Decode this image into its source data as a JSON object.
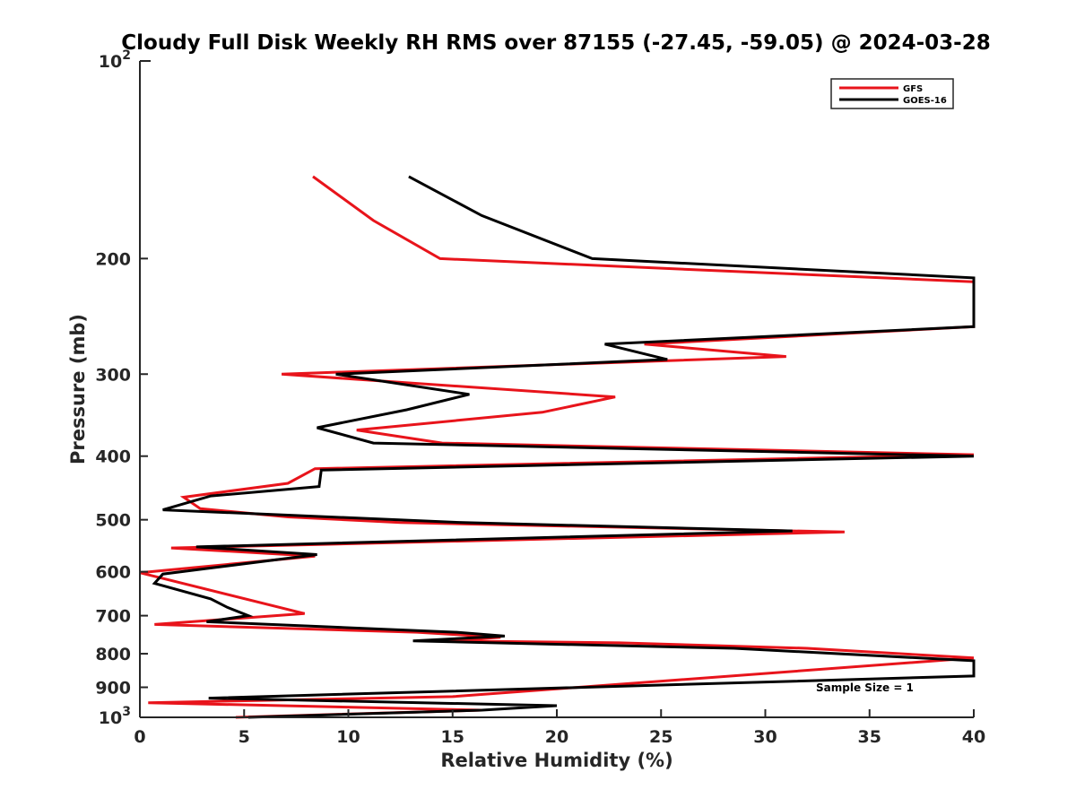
{
  "chart_data": {
    "type": "line",
    "title": "Cloudy Full Disk Weekly RH RMS over 87155 (-27.45, -59.05) @ 2024-03-28",
    "xlabel": "Relative Humidity (%)",
    "ylabel": "Pressure (mb)",
    "xlim": [
      0,
      40
    ],
    "ylim": [
      100,
      1000
    ],
    "yscale": "log",
    "y_reversed": true,
    "grid": false,
    "legend_position": "top-right",
    "x_ticks": [
      0,
      5,
      10,
      15,
      20,
      25,
      30,
      35,
      40
    ],
    "x_tick_labels": [
      "0",
      "5",
      "10",
      "15",
      "20",
      "25",
      "30",
      "35",
      "40"
    ],
    "y_ticks": [
      200,
      300,
      400,
      500,
      600,
      700,
      800,
      900
    ],
    "y_tick_labels": [
      "200",
      "300",
      "400",
      "500",
      "600",
      "700",
      "800",
      "900"
    ],
    "y_decade_ticks": [
      100,
      1000
    ],
    "y_decade_base": "10",
    "y_decade_exponents": [
      "2",
      "3"
    ],
    "annotation": "Sample Size = 1",
    "series": [
      {
        "name": "GFS",
        "color": "#e8141b",
        "points": [
          [
            8.3,
            150
          ],
          [
            11.2,
            175
          ],
          [
            14.4,
            200
          ],
          [
            40,
            217
          ],
          [
            40,
            254
          ],
          [
            24.2,
            270
          ],
          [
            31,
            282
          ],
          [
            6.8,
            300
          ],
          [
            22.8,
            325
          ],
          [
            19.3,
            343
          ],
          [
            10.4,
            365
          ],
          [
            14.5,
            382
          ],
          [
            40,
            398
          ],
          [
            8.4,
            418
          ],
          [
            7.1,
            440
          ],
          [
            2.1,
            462
          ],
          [
            2.9,
            481
          ],
          [
            7.1,
            495
          ],
          [
            12.5,
            505
          ],
          [
            33.8,
            522
          ],
          [
            1.5,
            552
          ],
          [
            8.4,
            568
          ],
          [
            0,
            602
          ],
          [
            7.9,
            695
          ],
          [
            0.7,
            722
          ],
          [
            13.3,
            742
          ],
          [
            17.3,
            755
          ],
          [
            14.8,
            765
          ],
          [
            23,
            770
          ],
          [
            32,
            785
          ],
          [
            40,
            812
          ],
          [
            15,
            930
          ],
          [
            0.4,
            950
          ],
          [
            16.4,
            975
          ],
          [
            4.6,
            1000
          ]
        ]
      },
      {
        "name": "GOES-16",
        "color": "#000000",
        "points": [
          [
            12.9,
            150
          ],
          [
            16.4,
            172
          ],
          [
            21.7,
            200
          ],
          [
            40,
            214
          ],
          [
            40,
            254
          ],
          [
            22.3,
            270
          ],
          [
            25.3,
            285
          ],
          [
            9.4,
            300
          ],
          [
            15.8,
            322
          ],
          [
            12.8,
            340
          ],
          [
            8.5,
            362
          ],
          [
            11.2,
            382
          ],
          [
            40,
            400
          ],
          [
            8.7,
            420
          ],
          [
            8.6,
            445
          ],
          [
            3.4,
            460
          ],
          [
            1.1,
            483
          ],
          [
            7.1,
            492
          ],
          [
            15.5,
            505
          ],
          [
            31.3,
            520
          ],
          [
            2.7,
            550
          ],
          [
            8.5,
            565
          ],
          [
            1.1,
            605
          ],
          [
            0.7,
            625
          ],
          [
            3.4,
            660
          ],
          [
            4.2,
            680
          ],
          [
            5.2,
            700
          ],
          [
            3.2,
            715
          ],
          [
            15.2,
            742
          ],
          [
            17.5,
            752
          ],
          [
            13.1,
            765
          ],
          [
            28.5,
            785
          ],
          [
            40,
            820
          ],
          [
            40,
            865
          ],
          [
            3.3,
            935
          ],
          [
            20,
            960
          ],
          [
            16.4,
            975
          ],
          [
            5.2,
            1000
          ]
        ]
      }
    ]
  }
}
